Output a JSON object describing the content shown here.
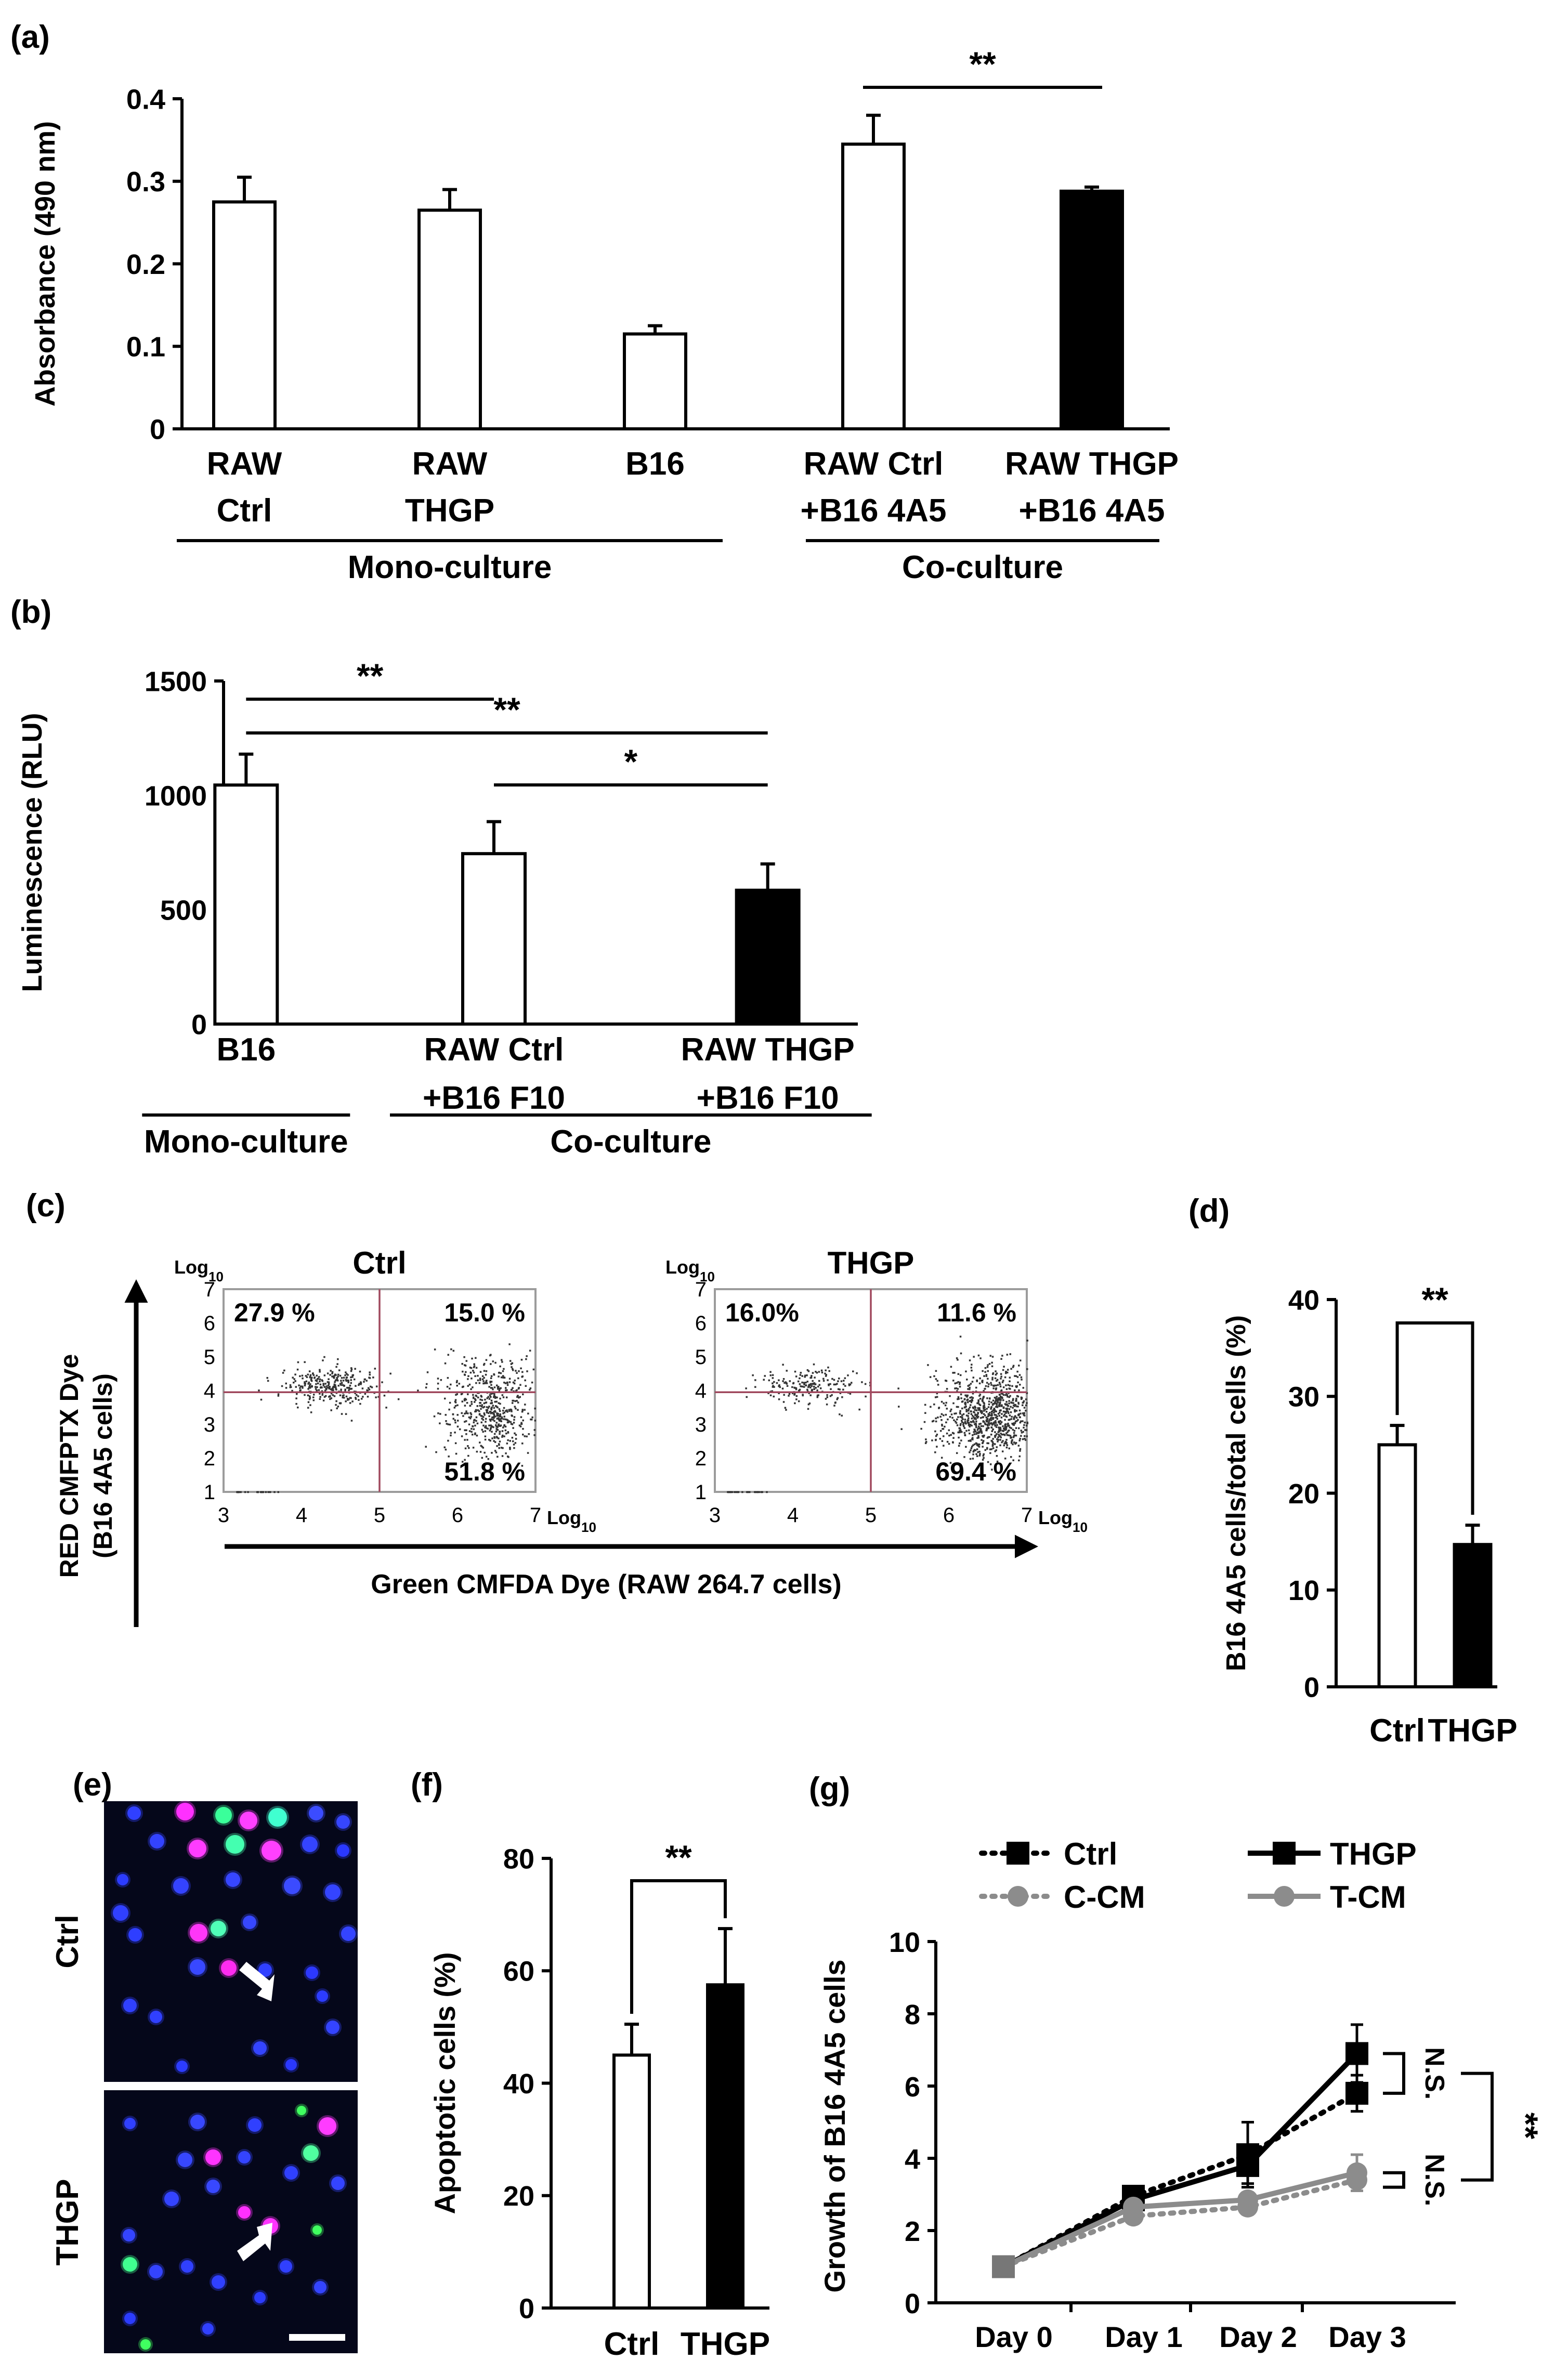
{
  "panels": {
    "a": {
      "label": "(a)"
    },
    "b": {
      "label": "(b)"
    },
    "c": {
      "label": "(c)"
    },
    "d": {
      "label": "(d)"
    },
    "e": {
      "label": "(e)"
    },
    "f": {
      "label": "(f)"
    },
    "g": {
      "label": "(g)"
    }
  },
  "chart_data": [
    {
      "id": "a",
      "type": "bar",
      "title": "",
      "ylabel": "Absorbance (490 nm)",
      "ylim": [
        0,
        0.4
      ],
      "yticks": [
        "0",
        "0.1",
        "0.2",
        "0.3",
        "0.4"
      ],
      "categories": [
        {
          "lines": [
            "RAW",
            "Ctrl"
          ],
          "value": 0.275,
          "error": 0.03,
          "fill": "#ffffff"
        },
        {
          "lines": [
            "RAW",
            "THGP"
          ],
          "value": 0.265,
          "error": 0.025,
          "fill": "#ffffff"
        },
        {
          "lines": [
            "B16"
          ],
          "value": 0.115,
          "error": 0.01,
          "fill": "#ffffff"
        },
        {
          "lines": [
            "RAW Ctrl",
            "+B16 4A5"
          ],
          "value": 0.345,
          "error": 0.035,
          "fill": "#ffffff"
        },
        {
          "lines": [
            "RAW THGP",
            "+B16 4A5"
          ],
          "value": 0.288,
          "error": 0.005,
          "fill": "#000000"
        }
      ],
      "groups": [
        {
          "label": "Mono-culture",
          "from": 0,
          "to": 2
        },
        {
          "label": "Co-culture",
          "from": 3,
          "to": 4
        }
      ],
      "significance": [
        {
          "from": 3,
          "to": 4,
          "label": "**"
        }
      ],
      "grid": false
    },
    {
      "id": "b",
      "type": "bar",
      "title": "",
      "ylabel": "Luminescence (RLU)",
      "ylim": [
        0,
        1500
      ],
      "yticks": [
        "0",
        "500",
        "1000",
        "1500"
      ],
      "categories": [
        {
          "lines": [
            "B16"
          ],
          "value": 1045,
          "error": 135,
          "fill": "#ffffff"
        },
        {
          "lines": [
            "RAW Ctrl",
            "+B16 F10"
          ],
          "value": 745,
          "error": 140,
          "fill": "#ffffff"
        },
        {
          "lines": [
            "RAW THGP",
            "+B16 F10"
          ],
          "value": 585,
          "error": 115,
          "fill": "#000000"
        }
      ],
      "groups": [
        {
          "label": "Mono-culture",
          "from": 0,
          "to": 0
        },
        {
          "label": "Co-culture",
          "from": 1,
          "to": 2
        }
      ],
      "significance": [
        {
          "from": 0,
          "to": 1,
          "label": "**"
        },
        {
          "from": 0,
          "to": 2,
          "label": "**"
        },
        {
          "from": 1,
          "to": 2,
          "label": "*"
        }
      ],
      "grid": false
    },
    {
      "id": "c",
      "type": "scatter",
      "xlabel": "Green CMFDA Dye (RAW 264.7 cells)",
      "ylabel_lines": [
        "RED CMFPTX Dye",
        "(B16 4A5 cells)"
      ],
      "axis_unit": "Log",
      "axis_unit_sub": "10",
      "xlim": [
        3,
        7
      ],
      "ylim": [
        1,
        7
      ],
      "xticks": [
        "3",
        "4",
        "5",
        "6",
        "7"
      ],
      "yticks": [
        "1",
        "2",
        "3",
        "4",
        "5",
        "6",
        "7"
      ],
      "quadrant_x": 5,
      "quadrant_y": 3.95,
      "plots": [
        {
          "title": "Ctrl",
          "q_upper_left": "27.9 %",
          "q_upper_right": "15.0 %",
          "q_lower_right": "51.8 %",
          "clusters": [
            {
              "cx": 4.35,
              "cy": 4.15,
              "sx": 0.3,
              "sy": 0.28,
              "n": 320
            },
            {
              "cx": 6.45,
              "cy": 3.3,
              "sx": 0.32,
              "sy": 0.6,
              "n": 480
            },
            {
              "cx": 6.5,
              "cy": 4.5,
              "sx": 0.4,
              "sy": 0.35,
              "n": 120
            }
          ]
        },
        {
          "title": "THGP",
          "q_upper_left": "16.0%",
          "q_upper_right": "11.6 %",
          "q_lower_right": "69.4 %",
          "clusters": [
            {
              "cx": 4.2,
              "cy": 4.15,
              "sx": 0.3,
              "sy": 0.25,
              "n": 200
            },
            {
              "cx": 6.55,
              "cy": 3.15,
              "sx": 0.35,
              "sy": 0.55,
              "n": 850
            },
            {
              "cx": 6.55,
              "cy": 4.4,
              "sx": 0.4,
              "sy": 0.35,
              "n": 130
            }
          ]
        }
      ]
    },
    {
      "id": "d",
      "type": "bar",
      "title": "",
      "ylabel": "B16 4A5 cells/total cells (%)",
      "ylim": [
        0,
        40
      ],
      "yticks": [
        "0",
        "10",
        "20",
        "30",
        "40"
      ],
      "categories": [
        {
          "lines": [
            "Ctrl"
          ],
          "value": 25,
          "error": 2,
          "fill": "#ffffff"
        },
        {
          "lines": [
            "THGP"
          ],
          "value": 14.7,
          "error": 2,
          "fill": "#000000"
        }
      ],
      "significance": [
        {
          "from": 0,
          "to": 1,
          "label": "**"
        }
      ],
      "grid": false
    },
    {
      "id": "f",
      "type": "bar",
      "title": "",
      "ylabel": "Apoptotic cells (%)",
      "ylim": [
        0,
        80
      ],
      "yticks": [
        "0",
        "20",
        "40",
        "60",
        "80"
      ],
      "categories": [
        {
          "lines": [
            "Ctrl"
          ],
          "value": 45,
          "error": 5.5,
          "fill": "#ffffff"
        },
        {
          "lines": [
            "THGP"
          ],
          "value": 57.5,
          "error": 10,
          "fill": "#000000"
        }
      ],
      "significance": [
        {
          "from": 0,
          "to": 1,
          "label": "**"
        }
      ],
      "grid": false
    },
    {
      "id": "g",
      "type": "line",
      "title": "",
      "ylabel": "Growth of B16 4A5 cells",
      "ylim": [
        0,
        10
      ],
      "yticks": [
        "0",
        "2",
        "4",
        "6",
        "8",
        "10"
      ],
      "categories": [
        "Day 0",
        "Day 1",
        "Day 2",
        "Day 3"
      ],
      "series": [
        {
          "name": "Ctrl",
          "values": [
            1,
            2.95,
            4.1,
            5.8
          ],
          "errors": [
            0,
            0.2,
            0.9,
            0.5
          ],
          "color": "#000000",
          "dashed": true,
          "marker": "square"
        },
        {
          "name": "THGP",
          "values": [
            1,
            2.85,
            3.8,
            6.9
          ],
          "errors": [
            0,
            0.2,
            0.5,
            0.8
          ],
          "color": "#000000",
          "dashed": false,
          "marker": "square"
        },
        {
          "name": "C-CM",
          "values": [
            1,
            2.4,
            2.65,
            3.4
          ],
          "errors": [
            0,
            0.15,
            0.2,
            0.3
          ],
          "color": "#8c8c8c",
          "dashed": true,
          "marker": "circle"
        },
        {
          "name": "T-CM",
          "values": [
            1,
            2.65,
            2.85,
            3.6
          ],
          "errors": [
            0,
            0.15,
            0.2,
            0.5
          ],
          "color": "#8c8c8c",
          "dashed": false,
          "marker": "circle"
        }
      ],
      "annotations": [
        "N.S.",
        "N.S.",
        "**"
      ],
      "legend": "top",
      "grid": false
    }
  ],
  "micrographs": {
    "top_label": "Ctrl",
    "bottom_label": "THGP",
    "background": "#05071a"
  }
}
